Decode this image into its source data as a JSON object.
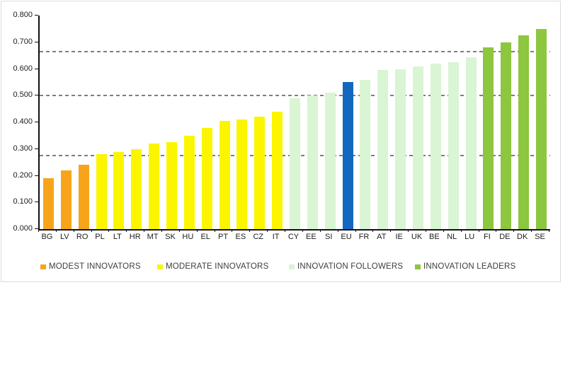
{
  "chart_data": {
    "type": "bar",
    "title": "",
    "categories": [
      "BG",
      "LV",
      "RO",
      "PL",
      "LT",
      "HR",
      "MT",
      "SK",
      "HU",
      "EL",
      "PT",
      "ES",
      "CZ",
      "IT",
      "CY",
      "EE",
      "SI",
      "EU",
      "FR",
      "AT",
      "IE",
      "UK",
      "BE",
      "NL",
      "LU",
      "FI",
      "DE",
      "DK",
      "SE"
    ],
    "values": [
      0.19,
      0.22,
      0.24,
      0.28,
      0.29,
      0.3,
      0.32,
      0.325,
      0.35,
      0.38,
      0.405,
      0.41,
      0.42,
      0.44,
      0.49,
      0.5,
      0.51,
      0.55,
      0.56,
      0.595,
      0.6,
      0.61,
      0.62,
      0.625,
      0.645,
      0.68,
      0.7,
      0.725,
      0.75
    ],
    "bar_groups": [
      "modest",
      "modest",
      "modest",
      "moderate",
      "moderate",
      "moderate",
      "moderate",
      "moderate",
      "moderate",
      "moderate",
      "moderate",
      "moderate",
      "moderate",
      "moderate",
      "followers",
      "followers",
      "followers",
      "eu",
      "followers",
      "followers",
      "followers",
      "followers",
      "followers",
      "followers",
      "followers",
      "leaders",
      "leaders",
      "leaders",
      "leaders"
    ],
    "groups": {
      "modest": {
        "label": "MODEST INNOVATORS",
        "color": "#F8A41B"
      },
      "moderate": {
        "label": "MODERATE INNOVATORS",
        "color": "#FBF500"
      },
      "followers": {
        "label": "INNOVATION FOLLOWERS",
        "color": "#D9F5D4"
      },
      "leaders": {
        "label": "INNOVATION LEADERS",
        "color": "#8DC63F"
      },
      "eu": {
        "label": "EU",
        "color": "#1268BE"
      }
    },
    "legend_order": [
      "modest",
      "moderate",
      "followers",
      "leaders"
    ],
    "y_axis": {
      "min": 0.0,
      "max": 0.8,
      "step": 0.1,
      "tick_labels": [
        "0.000",
        "0.100",
        "0.200",
        "0.300",
        "0.400",
        "0.500",
        "0.600",
        "0.700",
        "0.800"
      ]
    },
    "threshold_lines": [
      0.275,
      0.5,
      0.665
    ],
    "grid": "dashed-thresholds-only",
    "legend_position": "bottom",
    "xlabel": "",
    "ylabel": ""
  },
  "style": {
    "threshold_color": "#7E7E7E",
    "axis_color": "#111111",
    "tick_text_color": "#1C1C1C",
    "legend_text_color": "#3D3D3D",
    "background": "#FFFFFF",
    "frame_border": "#DCDCDC"
  }
}
